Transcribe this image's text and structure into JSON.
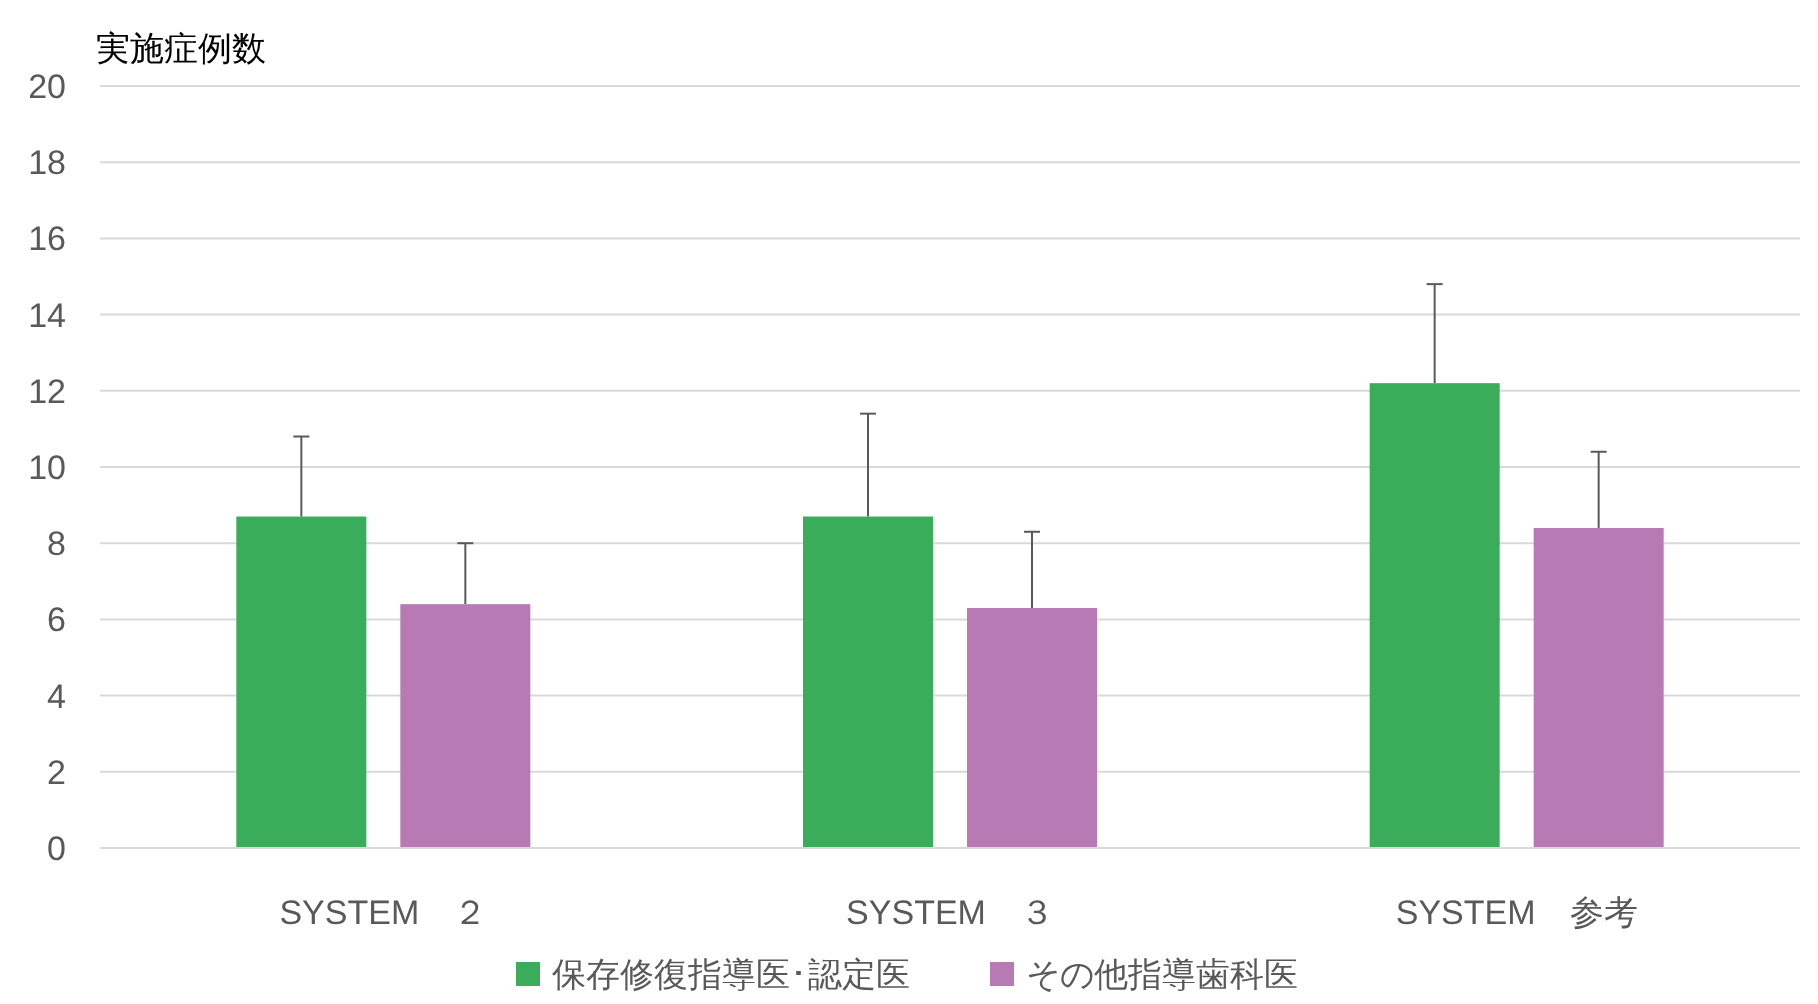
{
  "chart_data": {
    "type": "bar",
    "ylabel": "実施症例数",
    "categories": [
      "SYSTEM　２",
      "SYSTEM　３",
      "SYSTEM　参考"
    ],
    "series": [
      {
        "name": "保存修復指導医･認定医",
        "color": "#39ad5a",
        "values": [
          8.7,
          8.7,
          12.2
        ],
        "errors": [
          [
            8.7,
            10.8
          ],
          [
            8.7,
            11.4
          ],
          [
            12.2,
            14.8
          ]
        ]
      },
      {
        "name": "その他指導歯科医",
        "color": "#b77ab5",
        "values": [
          6.4,
          6.3,
          8.4
        ],
        "errors": [
          [
            6.4,
            8.0
          ],
          [
            6.3,
            8.3
          ],
          [
            8.4,
            10.4
          ]
        ]
      }
    ],
    "ylim": [
      0,
      20
    ],
    "yticks": [
      0,
      2,
      4,
      6,
      8,
      10,
      12,
      14,
      16,
      18,
      20
    ],
    "grid": "y",
    "legend": "bottom"
  }
}
